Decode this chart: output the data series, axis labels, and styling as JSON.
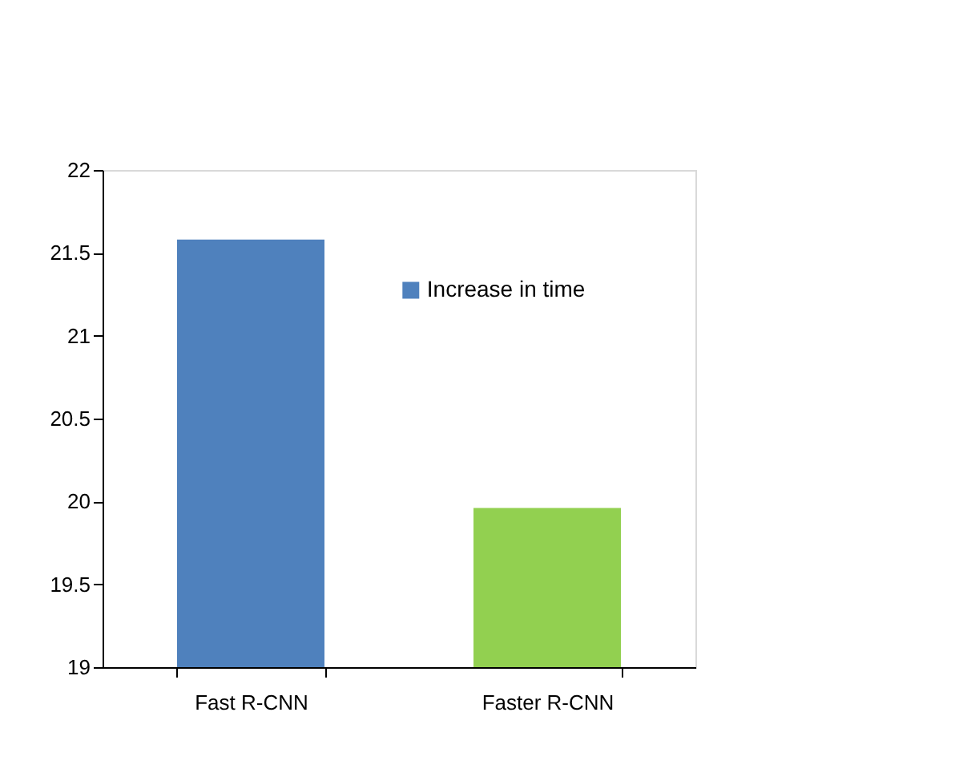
{
  "chart_data": {
    "type": "bar",
    "categories": [
      "Fast R-CNN",
      "Faster R-CNN"
    ],
    "series": [
      {
        "name": "Increase in time",
        "colors": [
          "#4f81bd",
          "#92d050"
        ],
        "values": [
          21.58,
          19.96
        ]
      }
    ],
    "ylim": [
      19,
      22
    ],
    "yticks": [
      19,
      19.5,
      20,
      20.5,
      21,
      21.5,
      22
    ],
    "grid": false,
    "legend": "top right"
  }
}
